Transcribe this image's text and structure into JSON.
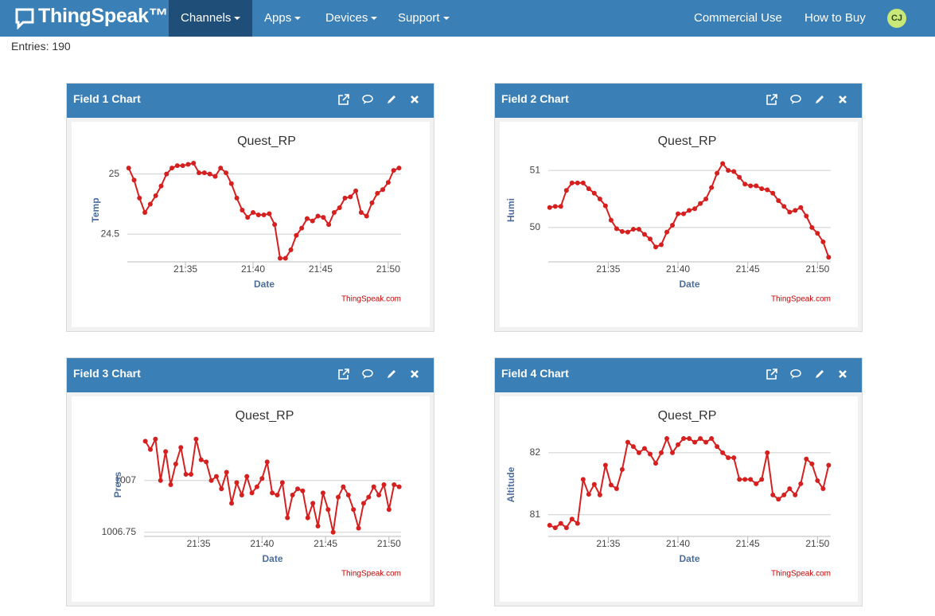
{
  "nav": {
    "logo": "ThingSpeak™",
    "items": [
      "Channels",
      "Apps",
      "Devices",
      "Support"
    ],
    "right": [
      "Commercial Use",
      "How to Buy"
    ],
    "avatar": "CJ"
  },
  "entries": "Entries: 190",
  "panels": [
    "Field 1 Chart",
    "Field 2 Chart",
    "Field 3 Chart",
    "Field 4 Chart"
  ],
  "chart_data": [
    {
      "type": "line",
      "title": "Quest_RP",
      "x_label": "Date",
      "y_label": "Temp",
      "credit": "ThingSpeak.com",
      "color": "#d62020",
      "x": [
        1290.8,
        1291.2,
        1291.6,
        1292,
        1292.4,
        1292.8,
        1293.2,
        1293.6,
        1294,
        1294.4,
        1294.8,
        1295.2,
        1295.6,
        1296,
        1296.4,
        1296.8,
        1297.2,
        1297.6,
        1298,
        1298.4,
        1298.8,
        1299.2,
        1299.6,
        1300,
        1300.4,
        1300.8,
        1301.2,
        1301.6,
        1302,
        1302.4,
        1302.8,
        1303.2,
        1303.6,
        1304,
        1304.4,
        1304.8,
        1305.2,
        1305.6,
        1306,
        1306.4,
        1306.8,
        1307.2,
        1307.6,
        1308,
        1308.4,
        1308.8,
        1309.2,
        1309.6,
        1310,
        1310.4,
        1310.8
      ],
      "values": [
        25.05,
        24.95,
        24.8,
        24.68,
        24.75,
        24.82,
        24.9,
        25.0,
        25.05,
        25.07,
        25.07,
        25.08,
        25.09,
        25.01,
        25.01,
        25.0,
        24.98,
        25.05,
        25.01,
        24.92,
        24.8,
        24.7,
        24.64,
        24.68,
        24.66,
        24.66,
        24.67,
        24.58,
        24.3,
        24.3,
        24.37,
        24.49,
        24.55,
        24.63,
        24.61,
        24.65,
        24.64,
        24.58,
        24.68,
        24.72,
        24.8,
        24.81,
        24.86,
        24.68,
        24.65,
        24.76,
        24.84,
        24.87,
        24.93,
        25.03,
        25.05
      ],
      "xlim": [
        1290.7,
        1310.95
      ],
      "xticks": [
        {
          "value": 1295,
          "label": "21:35"
        },
        {
          "value": 1300,
          "label": "21:40"
        },
        {
          "value": 1305,
          "label": "21:45"
        },
        {
          "value": 1310,
          "label": "21:50"
        }
      ],
      "ylim": [
        24.27,
        25.13
      ],
      "yticks": [
        24.5,
        25
      ],
      "grid": true
    },
    {
      "type": "line",
      "title": "Quest_RP",
      "x_label": "Date",
      "y_label": "Humi",
      "credit": "ThingSpeak.com",
      "color": "#d62020",
      "x": [
        1290.8,
        1291.2,
        1291.6,
        1292,
        1292.4,
        1292.8,
        1293.2,
        1293.6,
        1294,
        1294.4,
        1294.8,
        1295.2,
        1295.6,
        1296,
        1296.4,
        1296.8,
        1297.2,
        1297.6,
        1298,
        1298.4,
        1298.8,
        1299.2,
        1299.6,
        1300,
        1300.4,
        1300.8,
        1301.2,
        1301.6,
        1302,
        1302.4,
        1302.8,
        1303.2,
        1303.6,
        1304,
        1304.4,
        1304.8,
        1305.2,
        1305.6,
        1306,
        1306.4,
        1306.8,
        1307.2,
        1307.6,
        1308,
        1308.4,
        1308.8,
        1309.2,
        1309.6,
        1310,
        1310.4,
        1310.8
      ],
      "values": [
        50.35,
        50.37,
        50.37,
        50.65,
        50.78,
        50.78,
        50.78,
        50.68,
        50.6,
        50.5,
        50.38,
        50.13,
        49.98,
        49.93,
        49.92,
        49.97,
        49.97,
        49.88,
        49.8,
        49.66,
        49.7,
        49.92,
        50.04,
        50.24,
        50.24,
        50.3,
        50.33,
        50.42,
        50.5,
        50.7,
        50.95,
        51.12,
        51.0,
        50.98,
        50.88,
        50.76,
        50.73,
        50.73,
        50.68,
        50.66,
        50.6,
        50.47,
        50.37,
        50.27,
        50.3,
        50.35,
        50.2,
        50.0,
        49.9,
        49.75,
        49.48
      ],
      "xlim": [
        1290.7,
        1310.95
      ],
      "xticks": [
        {
          "value": 1295,
          "label": "21:35"
        },
        {
          "value": 1300,
          "label": "21:40"
        },
        {
          "value": 1305,
          "label": "21:45"
        },
        {
          "value": 1310,
          "label": "21:50"
        }
      ],
      "ylim": [
        49.4,
        51.21
      ],
      "yticks": [
        50,
        51
      ],
      "grid": true
    },
    {
      "type": "line",
      "title": "Quest_RP",
      "x_label": "Date",
      "y_label": "Press",
      "credit": "ThingSpeak.com",
      "color": "#d62020",
      "x": [
        1290.8,
        1291.2,
        1291.6,
        1292,
        1292.4,
        1292.8,
        1293.2,
        1293.6,
        1294,
        1294.4,
        1294.8,
        1295.2,
        1295.6,
        1296,
        1296.4,
        1296.8,
        1297.2,
        1297.6,
        1298,
        1298.4,
        1298.8,
        1299.2,
        1299.6,
        1300,
        1300.4,
        1300.8,
        1301.2,
        1301.6,
        1302,
        1302.4,
        1302.8,
        1303.2,
        1303.6,
        1304,
        1304.4,
        1304.8,
        1305.2,
        1305.6,
        1306,
        1306.4,
        1306.8,
        1307.2,
        1307.6,
        1308,
        1308.4,
        1308.8,
        1309.2,
        1309.6,
        1310,
        1310.4,
        1310.8
      ],
      "values": [
        1007.19,
        1007.15,
        1007.2,
        1007.0,
        1007.14,
        1006.98,
        1007.08,
        1007.16,
        1007.03,
        1007.03,
        1007.2,
        1007.1,
        1007.09,
        1007.0,
        1007.02,
        1006.96,
        1007.04,
        1006.89,
        1006.99,
        1006.93,
        1007.02,
        1006.94,
        1006.97,
        1007.01,
        1007.09,
        1006.94,
        1006.93,
        1006.99,
        1006.82,
        1006.93,
        1006.96,
        1006.95,
        1006.82,
        1006.89,
        1006.78,
        1006.94,
        1006.86,
        1006.75,
        1006.92,
        1006.97,
        1006.93,
        1006.86,
        1006.77,
        1006.89,
        1006.92,
        1006.97,
        1006.93,
        1006.98,
        1006.86,
        1006.98,
        1006.97
      ],
      "xlim": [
        1290.7,
        1310.95
      ],
      "xticks": [
        {
          "value": 1295,
          "label": "21:35"
        },
        {
          "value": 1300,
          "label": "21:40"
        },
        {
          "value": 1305,
          "label": "21:45"
        },
        {
          "value": 1310,
          "label": "21:50"
        }
      ],
      "ylim": [
        1006.73,
        1007.23
      ],
      "yticks": [
        1006.75,
        1007
      ],
      "grid": true
    },
    {
      "type": "line",
      "title": "Quest_RP",
      "x_label": "Date",
      "y_label": "Altitude",
      "credit": "ThingSpeak.com",
      "color": "#d62020",
      "x": [
        1290.8,
        1291.2,
        1291.6,
        1292,
        1292.4,
        1292.8,
        1293.2,
        1293.6,
        1294,
        1294.4,
        1294.8,
        1295.2,
        1295.6,
        1296,
        1296.4,
        1296.8,
        1297.2,
        1297.6,
        1298,
        1298.4,
        1298.8,
        1299.2,
        1299.6,
        1300,
        1300.4,
        1300.8,
        1301.2,
        1301.6,
        1302,
        1302.4,
        1302.8,
        1303.2,
        1303.6,
        1304,
        1304.4,
        1304.8,
        1305.2,
        1305.6,
        1306,
        1306.4,
        1306.8,
        1307.2,
        1307.6,
        1308,
        1308.4,
        1308.8,
        1309.2,
        1309.6,
        1310,
        1310.4,
        1310.8
      ],
      "values": [
        80.83,
        80.79,
        80.86,
        80.79,
        80.93,
        80.86,
        81.57,
        81.33,
        81.49,
        81.32,
        81.8,
        81.48,
        81.42,
        81.73,
        82.17,
        82.1,
        82.0,
        82.07,
        81.98,
        81.83,
        82.0,
        82.23,
        82.0,
        82.13,
        82.23,
        82.23,
        82.17,
        82.23,
        82.17,
        82.23,
        82.1,
        82.0,
        81.92,
        81.92,
        81.57,
        81.57,
        81.57,
        81.5,
        81.57,
        82.0,
        81.32,
        81.25,
        81.32,
        81.42,
        81.32,
        81.5,
        81.9,
        81.82,
        81.55,
        81.42,
        81.8
      ],
      "xlim": [
        1290.7,
        1310.95
      ],
      "xticks": [
        {
          "value": 1295,
          "label": "21:35"
        },
        {
          "value": 1300,
          "label": "21:40"
        },
        {
          "value": 1305,
          "label": "21:45"
        },
        {
          "value": 1310,
          "label": "21:50"
        }
      ],
      "ylim": [
        80.65,
        82.32
      ],
      "yticks": [
        81,
        82
      ],
      "grid": true
    }
  ]
}
